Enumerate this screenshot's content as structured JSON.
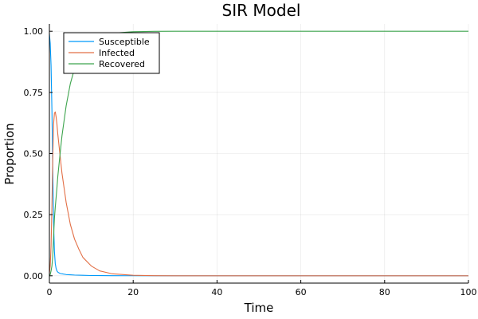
{
  "chart_data": {
    "type": "line",
    "title": "SIR Model",
    "xlabel": "Time",
    "ylabel": "Proportion",
    "xlim": [
      0,
      100
    ],
    "ylim": [
      -0.03,
      1.03
    ],
    "xticks": [
      0,
      20,
      40,
      60,
      80,
      100
    ],
    "xtick_labels": [
      "0",
      "20",
      "40",
      "60",
      "80",
      "100"
    ],
    "yticks": [
      0,
      0.25,
      0.5,
      0.75,
      1.0
    ],
    "ytick_labels": [
      "0.00",
      "0.25",
      "0.50",
      "0.75",
      "1.00"
    ],
    "grid": true,
    "legend_position": "top-left",
    "series": [
      {
        "name": "Susceptible",
        "color": "#009AFA",
        "x": [
          0,
          0.2,
          0.4,
          0.6,
          0.8,
          1.0,
          1.2,
          1.4,
          1.6,
          1.8,
          2.0,
          2.5,
          3,
          4,
          5,
          6,
          8,
          10,
          15,
          20,
          30,
          40,
          60,
          80,
          100
        ],
        "y": [
          0.99,
          0.95,
          0.86,
          0.68,
          0.44,
          0.22,
          0.1,
          0.05,
          0.03,
          0.02,
          0.015,
          0.01,
          0.008,
          0.005,
          0.004,
          0.003,
          0.002,
          0.001,
          0.0005,
          0.0002,
          0.0001,
          0,
          0,
          0,
          0
        ]
      },
      {
        "name": "Infected",
        "color": "#E26F46",
        "x": [
          0,
          0.2,
          0.4,
          0.6,
          0.8,
          1.0,
          1.2,
          1.4,
          1.6,
          1.8,
          2.0,
          2.5,
          3,
          4,
          5,
          6,
          7,
          8,
          10,
          12,
          15,
          20,
          25,
          30,
          40,
          60,
          80,
          100
        ],
        "y": [
          0.01,
          0.04,
          0.12,
          0.28,
          0.48,
          0.62,
          0.665,
          0.67,
          0.65,
          0.62,
          0.58,
          0.5,
          0.42,
          0.3,
          0.21,
          0.15,
          0.11,
          0.075,
          0.04,
          0.02,
          0.008,
          0.002,
          0.0005,
          0.0001,
          0,
          0,
          0,
          0
        ]
      },
      {
        "name": "Recovered",
        "color": "#3DA44D",
        "x": [
          0,
          0.2,
          0.4,
          0.6,
          0.8,
          1.0,
          1.2,
          1.4,
          1.6,
          1.8,
          2.0,
          2.5,
          3,
          4,
          5,
          6,
          7,
          8,
          10,
          12,
          15,
          20,
          25,
          30,
          40,
          60,
          80,
          100
        ],
        "y": [
          0,
          0.005,
          0.02,
          0.04,
          0.08,
          0.16,
          0.235,
          0.28,
          0.32,
          0.36,
          0.405,
          0.49,
          0.572,
          0.695,
          0.786,
          0.847,
          0.888,
          0.923,
          0.96,
          0.98,
          0.992,
          0.998,
          0.9995,
          0.9999,
          1,
          1,
          1,
          1
        ]
      }
    ]
  }
}
